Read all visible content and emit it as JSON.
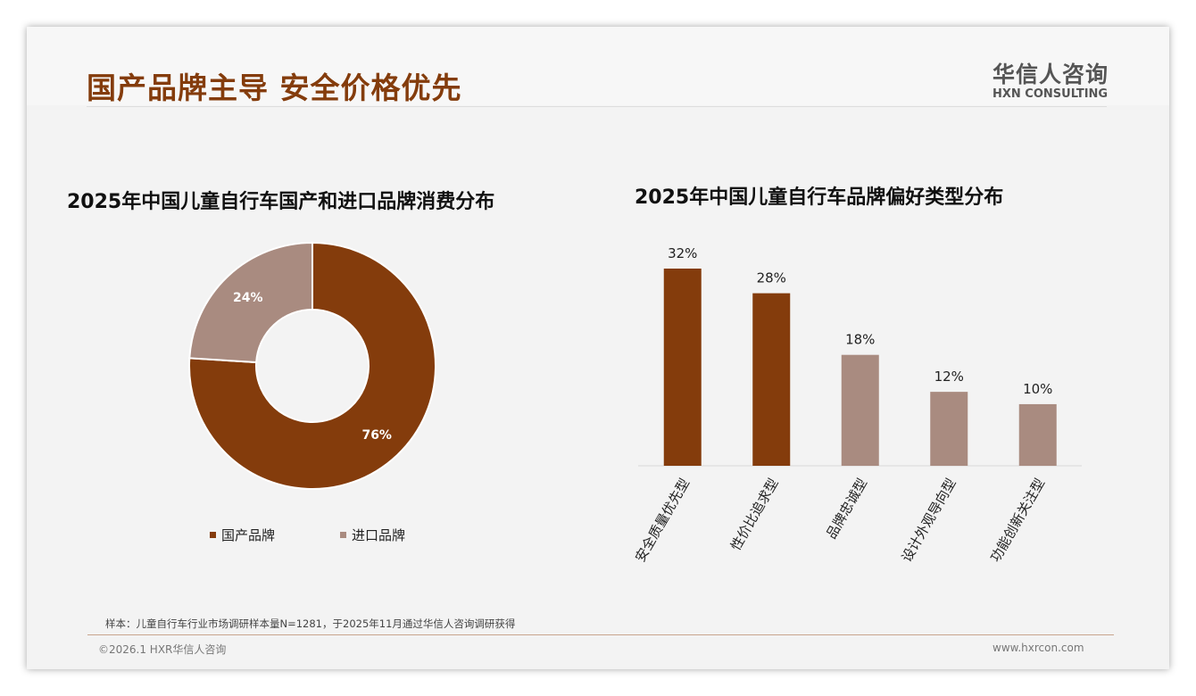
{
  "header": {
    "title": "国产品牌主导 安全价格优先",
    "logo_cn": "华信人咨询",
    "logo_en": "HXN CONSULTING"
  },
  "colors": {
    "primary": "#843c0c",
    "secondary": "#a98b80"
  },
  "chart_data": [
    {
      "type": "pie",
      "title": "2025年中国儿童自行车国产和进口品牌消费分布",
      "categories": [
        "国产品牌",
        "进口品牌"
      ],
      "values": [
        76,
        24
      ],
      "labels": [
        "76%",
        "24%"
      ],
      "legend": "bottom"
    },
    {
      "type": "bar",
      "title": "2025年中国儿童自行车品牌偏好类型分布",
      "categories": [
        "安全质量优先型",
        "性价比追求型",
        "品牌忠诚型",
        "设计外观导向型",
        "功能创新关注型"
      ],
      "values": [
        32,
        28,
        18,
        12,
        10
      ],
      "labels": [
        "32%",
        "28%",
        "18%",
        "12%",
        "10%"
      ],
      "ylim": [
        0,
        35
      ]
    }
  ],
  "footer": {
    "note": "样本：儿童自行车行业市场调研样本量N=1281，于2025年11月通过华信人咨询调研获得",
    "copyright": "©2026.1 HXR华信人咨询",
    "url": "www.hxrcon.com"
  }
}
